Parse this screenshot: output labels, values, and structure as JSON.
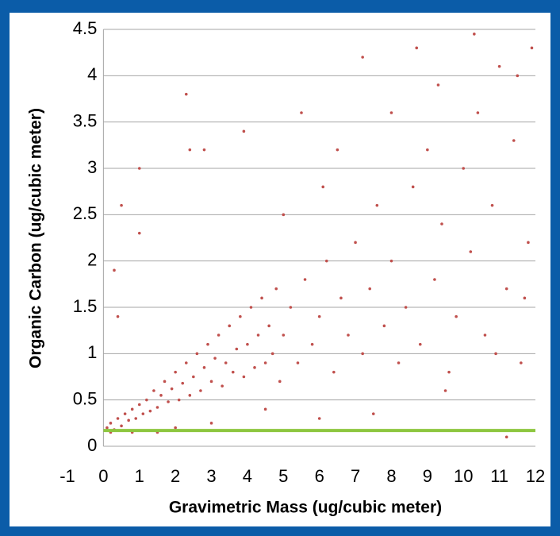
{
  "chart_data": {
    "type": "scatter",
    "x_label": "Gravimetric Mass (ug/cubic meter)",
    "y_label": "Organic Carbon (ug/cubic meter)",
    "xlim": [
      -1,
      12
    ],
    "ylim": [
      0,
      4.5
    ],
    "xticks": [
      -1,
      0,
      1,
      2,
      3,
      4,
      5,
      6,
      7,
      8,
      9,
      10,
      11,
      12
    ],
    "yticks": [
      0,
      0.5,
      1,
      1.5,
      2,
      2.5,
      3,
      3.5,
      4,
      4.5
    ],
    "grid": true,
    "hline": {
      "y": 0.17,
      "x": [
        0,
        12
      ],
      "color": "#8dc63f"
    },
    "series": [
      {
        "color": "#c0504d",
        "x": [
          0.1,
          0.2,
          0.3,
          0.4,
          0.5,
          0.6,
          0.7,
          0.8,
          0.9,
          1.0,
          1.1,
          1.2,
          1.3,
          1.4,
          1.5,
          1.6,
          1.7,
          1.8,
          1.9,
          2.0,
          2.1,
          2.2,
          2.3,
          2.4,
          2.5,
          2.6,
          2.7,
          2.8,
          2.9,
          3.0,
          3.1,
          3.2,
          3.3,
          3.4,
          3.5,
          3.6,
          3.7,
          3.8,
          3.9,
          4.0,
          4.1,
          4.2,
          4.3,
          4.4,
          4.5,
          4.6,
          4.7,
          4.8,
          4.9,
          5.0,
          5.2,
          5.4,
          5.6,
          5.8,
          6.0,
          6.2,
          6.4,
          6.6,
          6.8,
          7.0,
          7.2,
          7.4,
          7.6,
          7.8,
          8.0,
          8.2,
          8.4,
          8.6,
          8.8,
          9.0,
          9.2,
          9.4,
          9.6,
          9.8,
          10.0,
          10.2,
          10.4,
          10.6,
          10.8,
          11.0,
          11.2,
          11.4,
          11.6,
          11.8,
          11.9,
          0.3,
          0.4,
          0.5,
          1.0,
          1.0,
          2.3,
          2.4,
          2.8,
          3.9,
          7.2,
          8.7,
          10.3,
          11.2,
          5.5,
          6.5,
          7.5,
          9.5,
          6.0,
          4.5,
          3.0,
          1.5,
          2.0,
          0.8,
          0.2,
          5.0,
          6.1,
          8.0,
          9.3,
          11.5,
          10.9,
          11.7
        ],
        "values": [
          0.2,
          0.25,
          0.18,
          0.3,
          0.22,
          0.35,
          0.28,
          0.4,
          0.3,
          0.45,
          0.35,
          0.5,
          0.38,
          0.6,
          0.42,
          0.55,
          0.7,
          0.48,
          0.62,
          0.8,
          0.5,
          0.68,
          0.9,
          0.55,
          0.75,
          1.0,
          0.6,
          0.85,
          1.1,
          0.7,
          0.95,
          1.2,
          0.65,
          0.9,
          1.3,
          0.8,
          1.05,
          1.4,
          0.75,
          1.1,
          1.5,
          0.85,
          1.2,
          1.6,
          0.9,
          1.3,
          1.0,
          1.7,
          0.7,
          1.2,
          1.5,
          0.9,
          1.8,
          1.1,
          1.4,
          2.0,
          0.8,
          1.6,
          1.2,
          2.2,
          1.0,
          1.7,
          2.6,
          1.3,
          2.0,
          0.9,
          1.5,
          2.8,
          1.1,
          3.2,
          1.8,
          2.4,
          0.8,
          1.4,
          3.0,
          2.1,
          3.6,
          1.2,
          2.6,
          4.1,
          1.7,
          3.3,
          0.9,
          2.2,
          4.3,
          1.9,
          1.4,
          2.6,
          3.0,
          2.3,
          3.8,
          3.2,
          3.2,
          3.4,
          4.2,
          4.3,
          4.45,
          0.1,
          3.6,
          3.2,
          0.35,
          0.6,
          0.3,
          0.4,
          0.25,
          0.15,
          0.2,
          0.15,
          0.15,
          2.5,
          2.8,
          3.6,
          3.9,
          4.0,
          1.0,
          1.6
        ]
      }
    ]
  }
}
